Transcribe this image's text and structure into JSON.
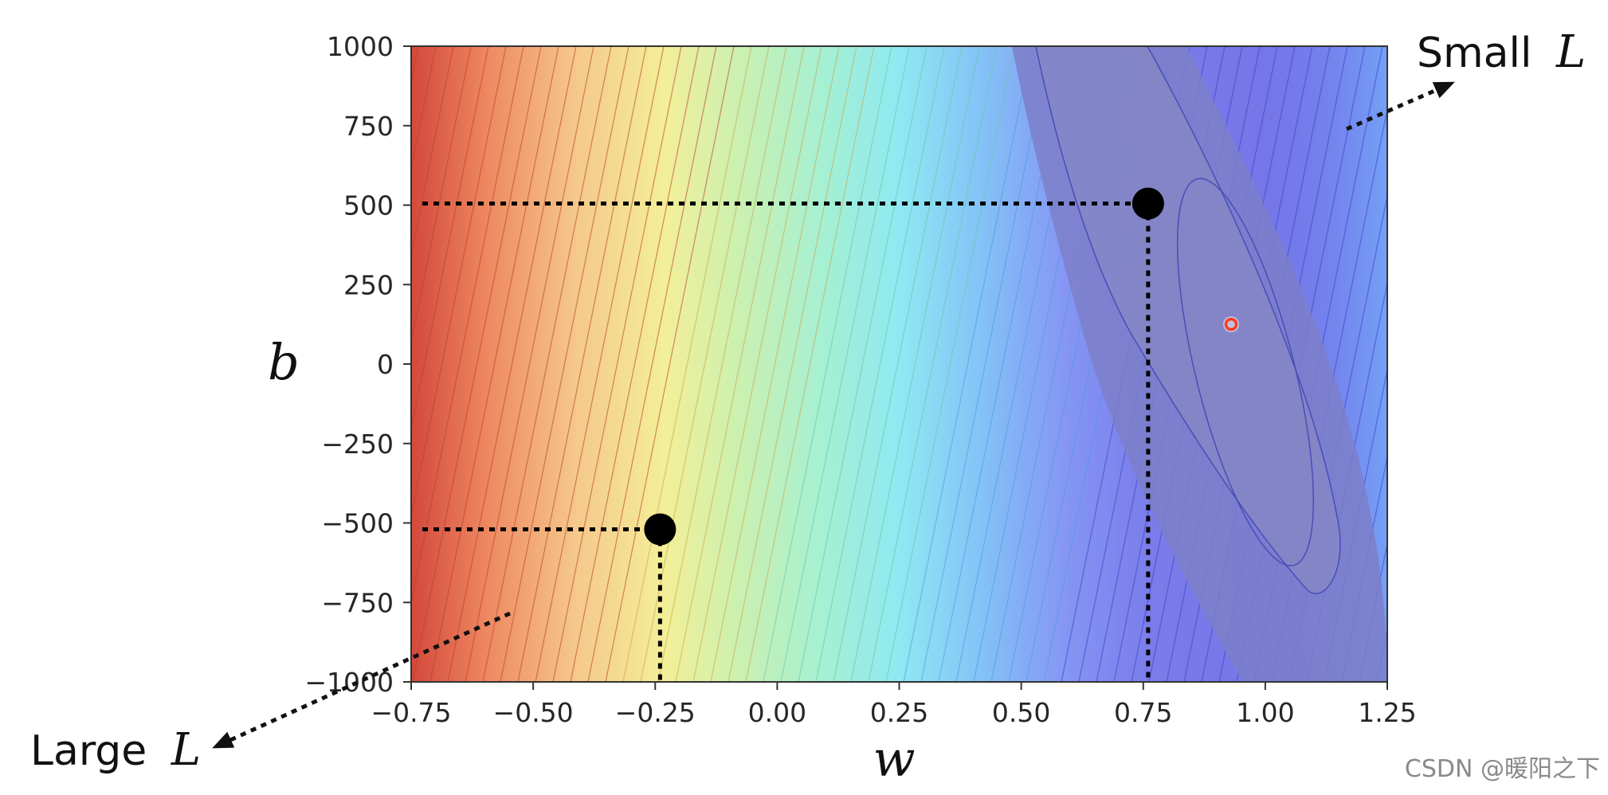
{
  "chart_data": {
    "type": "contour",
    "xlabel": "w",
    "ylabel": "b",
    "xlim": [
      -0.75,
      1.25
    ],
    "ylim": [
      -1000,
      1000
    ],
    "xticks": [
      -0.75,
      -0.5,
      -0.25,
      0.0,
      0.25,
      0.5,
      0.75,
      1.0,
      1.25
    ],
    "xtick_labels": [
      "−0.75",
      "−0.50",
      "−0.25",
      "0.00",
      "0.25",
      "0.50",
      "0.75",
      "1.00",
      "1.25"
    ],
    "yticks": [
      1000,
      750,
      500,
      250,
      0,
      -250,
      -500,
      -750,
      -1000
    ],
    "ytick_labels": [
      "1000",
      "750",
      "500",
      "250",
      "0",
      "−250",
      "−500",
      "−750",
      "−1000"
    ],
    "colormap": "jet",
    "minimum": {
      "w": 0.93,
      "b": 125,
      "color": "#ff3b1f"
    },
    "points": [
      {
        "w": 0.76,
        "b": 505
      },
      {
        "w": -0.24,
        "b": -520
      }
    ],
    "annotations": [
      {
        "text": "Small",
        "var": "L",
        "position": "top-right"
      },
      {
        "text": "Large",
        "var": "L",
        "position": "bottom-left"
      }
    ],
    "grid": false
  },
  "watermark": "CSDN @暖阳之下"
}
